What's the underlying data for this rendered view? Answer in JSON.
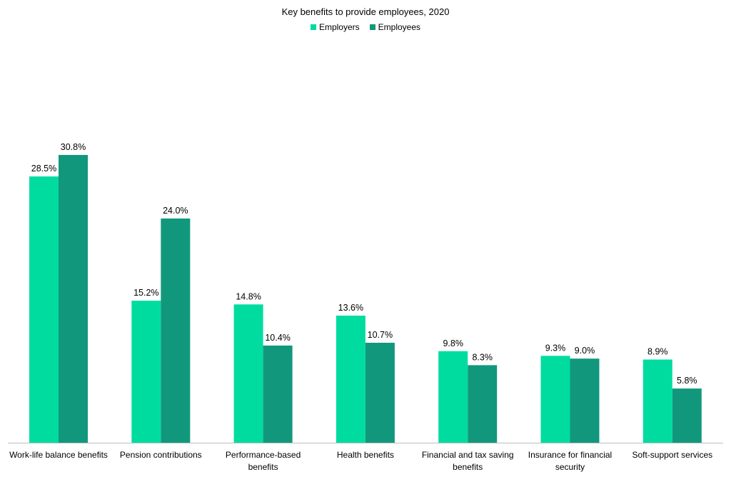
{
  "chart_data": {
    "type": "bar",
    "title": "Key benefits to provide employees, 2020",
    "categories": [
      "Work-life balance benefits",
      "Pension contributions",
      "Performance-based benefits",
      "Health benefits",
      "Financial and tax saving benefits",
      "Insurance for financial security",
      "Soft-support services"
    ],
    "category_lines": [
      [
        "Work-life balance benefits"
      ],
      [
        "Pension contributions"
      ],
      [
        "Performance-based",
        "benefits"
      ],
      [
        "Health benefits"
      ],
      [
        "Financial and tax saving",
        "benefits"
      ],
      [
        "Insurance for financial",
        "security"
      ],
      [
        "Soft-support services"
      ]
    ],
    "series": [
      {
        "name": "Employers",
        "color": "#00DCA0",
        "values": [
          28.5,
          15.2,
          14.8,
          13.6,
          9.8,
          9.3,
          8.9
        ],
        "labels": [
          "28.5%",
          "15.2%",
          "14.8%",
          "13.6%",
          "9.8%",
          "9.3%",
          "8.9%"
        ]
      },
      {
        "name": "Employees",
        "color": "#11987C",
        "values": [
          30.8,
          24.0,
          10.4,
          10.7,
          8.3,
          9.0,
          5.8
        ],
        "labels": [
          "30.8%",
          "24.0%",
          "10.4%",
          "10.7%",
          "8.3%",
          "9.0%",
          "5.8%"
        ]
      }
    ],
    "legend_position": "top-center",
    "grid": false,
    "ylim": [
      0,
      38
    ]
  }
}
